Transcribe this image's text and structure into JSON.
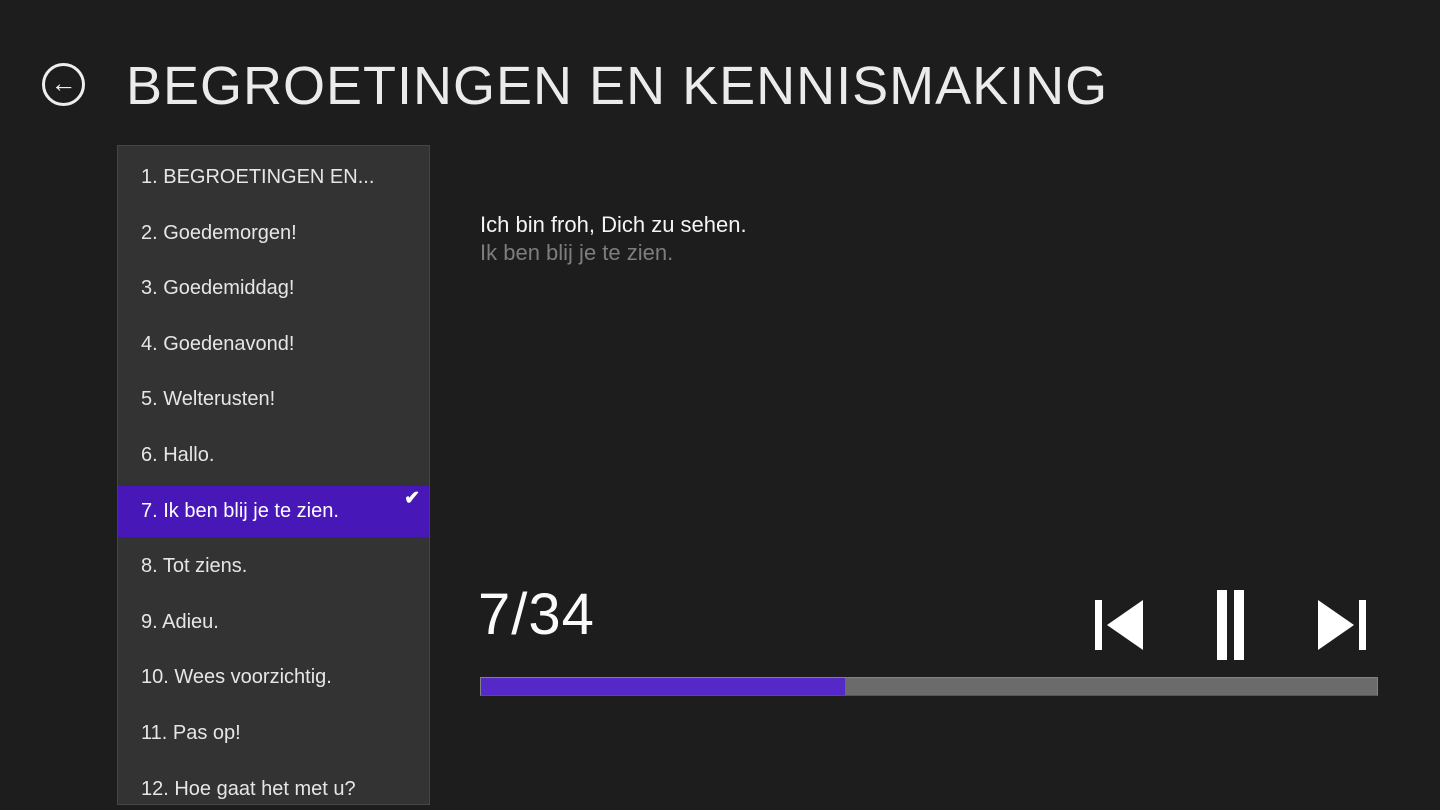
{
  "header": {
    "title": "BEGROETINGEN EN KENNISMAKING",
    "back_icon": "arrow-left-circle",
    "back_glyph": "←"
  },
  "phrase_list": {
    "items": [
      {
        "label": "1. BEGROETINGEN EN...",
        "selected": false
      },
      {
        "label": "2. Goedemorgen!",
        "selected": false
      },
      {
        "label": "3. Goedemiddag!",
        "selected": false
      },
      {
        "label": "4. Goedenavond!",
        "selected": false
      },
      {
        "label": "5. Welterusten!",
        "selected": false
      },
      {
        "label": "6. Hallo.",
        "selected": false
      },
      {
        "label": "7. Ik ben blij je te zien.",
        "selected": true
      },
      {
        "label": "8. Tot ziens.",
        "selected": false
      },
      {
        "label": "9. Adieu.",
        "selected": false
      },
      {
        "label": "10. Wees voorzichtig.",
        "selected": false
      },
      {
        "label": "11. Pas op!",
        "selected": false
      },
      {
        "label": "12. Hoe gaat het met u?",
        "selected": false
      }
    ],
    "selected_check_glyph": "✔"
  },
  "content": {
    "primary_text": "Ich bin froh, Dich zu sehen.",
    "secondary_text": "Ik ben blij je te zien."
  },
  "player": {
    "counter": "7/34",
    "progress_percent": 40.6,
    "controls": [
      {
        "name": "previous",
        "icon": "skip-previous-icon"
      },
      {
        "name": "pause",
        "icon": "pause-icon"
      },
      {
        "name": "next",
        "icon": "skip-next-icon"
      }
    ]
  },
  "colors": {
    "background": "#1d1d1d",
    "panel": "#333333",
    "accent_selection": "#4817b8",
    "accent_progress": "#5429c8",
    "progress_track": "#6b6b6b",
    "secondary_text": "#7d7d7d"
  }
}
